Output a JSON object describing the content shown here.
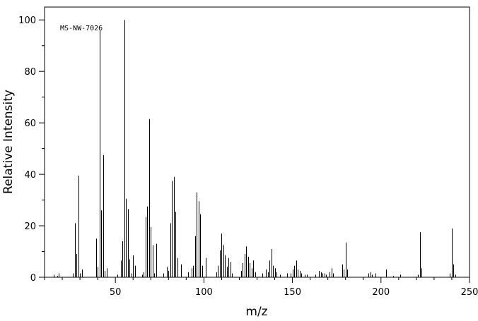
{
  "chart_data": {
    "type": "bar",
    "title": "",
    "annotation": "MS-NW-7026",
    "xlabel": "m/z",
    "ylabel": "Relative Intensity",
    "xlim": [
      10,
      250
    ],
    "ylim": [
      0,
      105
    ],
    "xticks_major": [
      50,
      100,
      150,
      200,
      250
    ],
    "xticks_minor_step": 10,
    "yticks_major": [
      0,
      20,
      40,
      60,
      80,
      100
    ],
    "yticks_minor_step": 10,
    "grid": false,
    "colors": {
      "bars": "#000000",
      "axes": "#000000"
    },
    "peaks": [
      [
        15,
        1.0
      ],
      [
        17,
        0.5
      ],
      [
        18,
        1.5
      ],
      [
        26,
        1.5
      ],
      [
        27,
        21.0
      ],
      [
        28,
        9.0
      ],
      [
        29,
        39.5
      ],
      [
        30,
        1.5
      ],
      [
        31,
        3.0
      ],
      [
        39,
        15.0
      ],
      [
        40,
        4.0
      ],
      [
        41,
        96.0
      ],
      [
        42,
        26.0
      ],
      [
        43,
        47.5
      ],
      [
        44,
        2.5
      ],
      [
        45,
        3.5
      ],
      [
        51,
        1.0
      ],
      [
        53,
        6.5
      ],
      [
        54,
        14.0
      ],
      [
        55,
        100.0
      ],
      [
        56,
        30.5
      ],
      [
        57,
        26.5
      ],
      [
        58,
        7.0
      ],
      [
        59,
        1.5
      ],
      [
        60,
        8.5
      ],
      [
        61,
        4.5
      ],
      [
        65,
        1.0
      ],
      [
        66,
        2.0
      ],
      [
        67,
        23.5
      ],
      [
        68,
        27.5
      ],
      [
        69,
        61.5
      ],
      [
        70,
        19.5
      ],
      [
        71,
        12.5
      ],
      [
        72,
        1.5
      ],
      [
        73,
        13.0
      ],
      [
        77,
        1.5
      ],
      [
        79,
        4.0
      ],
      [
        80,
        2.5
      ],
      [
        81,
        21.0
      ],
      [
        82,
        37.5
      ],
      [
        83,
        39.0
      ],
      [
        84,
        25.5
      ],
      [
        85,
        7.5
      ],
      [
        87,
        5.0
      ],
      [
        91,
        2.0
      ],
      [
        93,
        3.5
      ],
      [
        94,
        4.5
      ],
      [
        95,
        16.0
      ],
      [
        96,
        33.0
      ],
      [
        97,
        29.5
      ],
      [
        98,
        24.5
      ],
      [
        99,
        4.5
      ],
      [
        101,
        7.5
      ],
      [
        107,
        2.0
      ],
      [
        108,
        4.5
      ],
      [
        109,
        10.5
      ],
      [
        110,
        17.0
      ],
      [
        111,
        12.5
      ],
      [
        112,
        8.5
      ],
      [
        113,
        4.0
      ],
      [
        114,
        7.5
      ],
      [
        115,
        6.0
      ],
      [
        116,
        1.5
      ],
      [
        121,
        2.5
      ],
      [
        122,
        5.5
      ],
      [
        123,
        9.0
      ],
      [
        124,
        12.0
      ],
      [
        125,
        8.0
      ],
      [
        126,
        5.5
      ],
      [
        127,
        3.5
      ],
      [
        128,
        6.5
      ],
      [
        129,
        2.0
      ],
      [
        133,
        1.5
      ],
      [
        135,
        3.0
      ],
      [
        136,
        2.0
      ],
      [
        137,
        6.5
      ],
      [
        138,
        11.0
      ],
      [
        139,
        4.5
      ],
      [
        140,
        3.5
      ],
      [
        141,
        2.0
      ],
      [
        143,
        1.0
      ],
      [
        147,
        1.5
      ],
      [
        149,
        1.5
      ],
      [
        150,
        3.0
      ],
      [
        151,
        4.5
      ],
      [
        152,
        6.5
      ],
      [
        153,
        3.0
      ],
      [
        154,
        2.5
      ],
      [
        155,
        1.5
      ],
      [
        157,
        1.0
      ],
      [
        158,
        1.0
      ],
      [
        163,
        1.0
      ],
      [
        165,
        2.5
      ],
      [
        166,
        2.0
      ],
      [
        167,
        1.5
      ],
      [
        168,
        1.5
      ],
      [
        169,
        1.0
      ],
      [
        171,
        2.0
      ],
      [
        172,
        3.5
      ],
      [
        173,
        1.5
      ],
      [
        178,
        5.0
      ],
      [
        179,
        3.0
      ],
      [
        180,
        13.5
      ],
      [
        181,
        3.0
      ],
      [
        193,
        1.5
      ],
      [
        194,
        2.0
      ],
      [
        195,
        1.0
      ],
      [
        197,
        1.5
      ],
      [
        203,
        3.0
      ],
      [
        207,
        0.5
      ],
      [
        211,
        1.0
      ],
      [
        221,
        1.0
      ],
      [
        222,
        17.5
      ],
      [
        223,
        3.5
      ],
      [
        239,
        1.5
      ],
      [
        240,
        19.0
      ],
      [
        241,
        5.0
      ],
      [
        242,
        1.0
      ]
    ]
  }
}
